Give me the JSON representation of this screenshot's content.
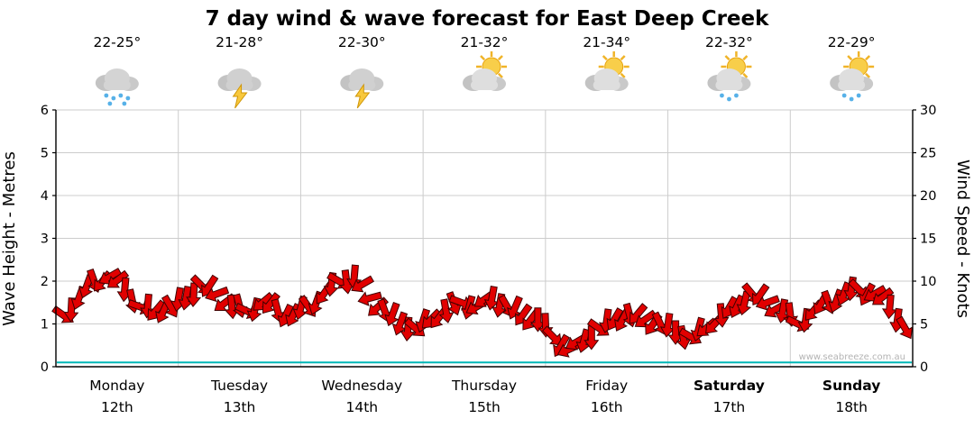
{
  "chart_data": {
    "type": "line",
    "title": "7 day wind & wave forecast for East Deep Creek",
    "watermark": "www.seabreeze.com.au",
    "grid": true,
    "legend": "none",
    "left_axis": {
      "label": "Wave Height - Metres",
      "min": 0,
      "max": 6,
      "step": 1
    },
    "right_axis": {
      "label": "Wind Speed - Knots",
      "min": 0,
      "max": 30,
      "step": 5
    },
    "days": [
      {
        "name": "Monday",
        "date": "12th",
        "temp": "22-25°",
        "icon": "rain",
        "bold": false
      },
      {
        "name": "Tuesday",
        "date": "13th",
        "temp": "21-28°",
        "icon": "storm",
        "bold": false
      },
      {
        "name": "Wednesday",
        "date": "14th",
        "temp": "22-30°",
        "icon": "storm",
        "bold": false
      },
      {
        "name": "Thursday",
        "date": "15th",
        "temp": "21-32°",
        "icon": "partly-sunny",
        "bold": false
      },
      {
        "name": "Friday",
        "date": "16th",
        "temp": "21-34°",
        "icon": "partly-sunny",
        "bold": false
      },
      {
        "name": "Saturday",
        "date": "17th",
        "temp": "22-32°",
        "icon": "sun-showers",
        "bold": true
      },
      {
        "name": "Sunday",
        "date": "18th",
        "temp": "22-29°",
        "icon": "sun-showers",
        "bold": true
      }
    ],
    "points_per_day": 8,
    "series": [
      {
        "name": "Wind speed",
        "unit": "knots",
        "axis": "right",
        "color": "#e10000",
        "values": [
          6,
          8,
          10,
          10.5,
          9,
          7,
          6.5,
          7,
          8,
          9.5,
          8.5,
          7,
          6.5,
          7.5,
          6.5,
          6,
          7,
          8.5,
          10,
          10.5,
          8,
          6.5,
          5,
          4.5,
          5.5,
          6.5,
          7.5,
          7,
          8,
          7,
          6,
          5.5,
          3.5,
          2,
          3,
          4.5,
          5.5,
          6,
          5.5,
          5,
          4,
          3.5,
          4.5,
          6,
          7,
          8.5,
          7.5,
          6.5,
          5,
          6.5,
          7.5,
          8.5,
          9,
          8.5,
          7,
          4.5
        ],
        "directions_deg": [
          35,
          110,
          70,
          150,
          95,
          20,
          130,
          60,
          100,
          45,
          160,
          85,
          25,
          140,
          75,
          115,
          55,
          125,
          30,
          95,
          165,
          70,
          110,
          40,
          135,
          80,
          20,
          150,
          100,
          60,
          125,
          90,
          45,
          155,
          105,
          35,
          120,
          75,
          145,
          65,
          90,
          30,
          140,
          85,
          115,
          50,
          160,
          100,
          25,
          130,
          70,
          110,
          45,
          150,
          95,
          60
        ]
      },
      {
        "name": "Wave height",
        "unit": "metres",
        "axis": "left",
        "color": "#00b6b6",
        "constant_value": 0.1
      }
    ]
  }
}
